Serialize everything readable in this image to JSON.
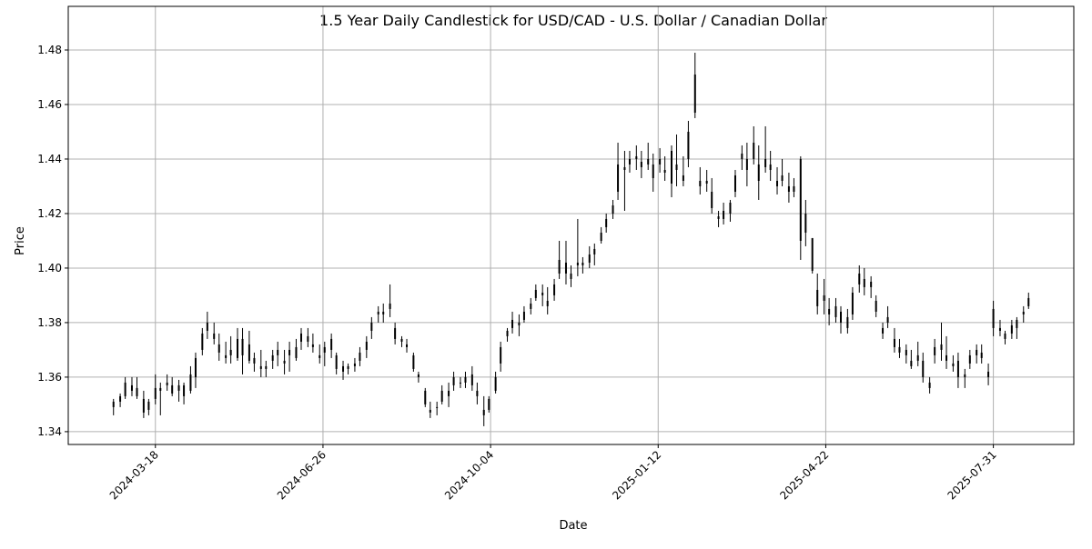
{
  "chart_data": {
    "type": "candlestick",
    "title": "1.5 Year Daily Candlestick for USD/CAD - U.S. Dollar / Canadian Dollar",
    "xlabel": "Date",
    "ylabel": "Price",
    "xlim": [
      "2024-01-26",
      "2025-09-17"
    ],
    "ylim": [
      1.3353,
      1.496
    ],
    "grid": true,
    "x_ticks": [
      "2024-03-18",
      "2024-06-26",
      "2024-10-04",
      "2025-01-12",
      "2025-04-22",
      "2025-07-31"
    ],
    "y_ticks": [
      "1.34",
      "1.36",
      "1.38",
      "1.40",
      "1.42",
      "1.44",
      "1.46",
      "1.48"
    ],
    "colors": {
      "candle": "#000000",
      "grid": "#b0b0b0"
    },
    "columns": [
      "date",
      "open",
      "high",
      "low",
      "close"
    ],
    "candles": [
      [
        "2024-02-22",
        1.349,
        1.352,
        1.346,
        1.351
      ],
      [
        "2024-02-26",
        1.351,
        1.354,
        1.349,
        1.353
      ],
      [
        "2024-02-29",
        1.353,
        1.36,
        1.352,
        1.358
      ],
      [
        "2024-03-04",
        1.357,
        1.36,
        1.353,
        1.355
      ],
      [
        "2024-03-07",
        1.356,
        1.36,
        1.352,
        1.353
      ],
      [
        "2024-03-11",
        1.352,
        1.355,
        1.345,
        1.347
      ],
      [
        "2024-03-14",
        1.348,
        1.352,
        1.346,
        1.351
      ],
      [
        "2024-03-18",
        1.352,
        1.361,
        1.35,
        1.356
      ],
      [
        "2024-03-21",
        1.355,
        1.358,
        1.346,
        1.356
      ],
      [
        "2024-03-25",
        1.357,
        1.361,
        1.355,
        1.358
      ],
      [
        "2024-03-28",
        1.357,
        1.36,
        1.353,
        1.354
      ],
      [
        "2024-04-01",
        1.355,
        1.359,
        1.351,
        1.357
      ],
      [
        "2024-04-04",
        1.357,
        1.358,
        1.35,
        1.353
      ],
      [
        "2024-04-08",
        1.355,
        1.364,
        1.354,
        1.361
      ],
      [
        "2024-04-11",
        1.36,
        1.369,
        1.356,
        1.367
      ],
      [
        "2024-04-15",
        1.37,
        1.378,
        1.368,
        1.376
      ],
      [
        "2024-04-18",
        1.377,
        1.384,
        1.374,
        1.38
      ],
      [
        "2024-04-22",
        1.376,
        1.38,
        1.372,
        1.374
      ],
      [
        "2024-04-25",
        1.372,
        1.376,
        1.366,
        1.369
      ],
      [
        "2024-04-29",
        1.368,
        1.373,
        1.365,
        1.367
      ],
      [
        "2024-05-02",
        1.37,
        1.375,
        1.365,
        1.368
      ],
      [
        "2024-05-06",
        1.367,
        1.378,
        1.366,
        1.374
      ],
      [
        "2024-05-09",
        1.374,
        1.378,
        1.361,
        1.368
      ],
      [
        "2024-05-13",
        1.366,
        1.377,
        1.365,
        1.372
      ],
      [
        "2024-05-16",
        1.367,
        1.369,
        1.362,
        1.365
      ],
      [
        "2024-05-20",
        1.364,
        1.37,
        1.36,
        1.363
      ],
      [
        "2024-05-23",
        1.363,
        1.366,
        1.36,
        1.364
      ],
      [
        "2024-05-27",
        1.366,
        1.37,
        1.363,
        1.368
      ],
      [
        "2024-05-30",
        1.368,
        1.373,
        1.364,
        1.37
      ],
      [
        "2024-06-03",
        1.366,
        1.37,
        1.361,
        1.365
      ],
      [
        "2024-06-06",
        1.368,
        1.373,
        1.362,
        1.37
      ],
      [
        "2024-06-10",
        1.367,
        1.374,
        1.366,
        1.371
      ],
      [
        "2024-06-13",
        1.373,
        1.378,
        1.37,
        1.376
      ],
      [
        "2024-06-17",
        1.375,
        1.378,
        1.371,
        1.373
      ],
      [
        "2024-06-20",
        1.371,
        1.376,
        1.369,
        1.372
      ],
      [
        "2024-06-24",
        1.368,
        1.372,
        1.365,
        1.367
      ],
      [
        "2024-06-27",
        1.369,
        1.373,
        1.364,
        1.371
      ],
      [
        "2024-07-01",
        1.37,
        1.376,
        1.367,
        1.374
      ],
      [
        "2024-07-04",
        1.368,
        1.369,
        1.361,
        1.363
      ],
      [
        "2024-07-08",
        1.364,
        1.366,
        1.359,
        1.362
      ],
      [
        "2024-07-11",
        1.363,
        1.365,
        1.361,
        1.364
      ],
      [
        "2024-07-15",
        1.364,
        1.367,
        1.362,
        1.365
      ],
      [
        "2024-07-18",
        1.366,
        1.371,
        1.364,
        1.369
      ],
      [
        "2024-07-22",
        1.37,
        1.375,
        1.367,
        1.373
      ],
      [
        "2024-07-25",
        1.377,
        1.382,
        1.374,
        1.38
      ],
      [
        "2024-07-29",
        1.383,
        1.386,
        1.38,
        1.384
      ],
      [
        "2024-08-01",
        1.384,
        1.387,
        1.38,
        1.383
      ],
      [
        "2024-08-05",
        1.385,
        1.394,
        1.382,
        1.387
      ],
      [
        "2024-08-08",
        1.378,
        1.38,
        1.372,
        1.374
      ],
      [
        "2024-08-12",
        1.374,
        1.375,
        1.371,
        1.373
      ],
      [
        "2024-08-15",
        1.372,
        1.374,
        1.369,
        1.371
      ],
      [
        "2024-08-19",
        1.368,
        1.369,
        1.362,
        1.363
      ],
      [
        "2024-08-22",
        1.361,
        1.362,
        1.358,
        1.36
      ],
      [
        "2024-08-26",
        1.355,
        1.356,
        1.349,
        1.35
      ],
      [
        "2024-08-29",
        1.348,
        1.351,
        1.345,
        1.347
      ],
      [
        "2024-09-02",
        1.349,
        1.351,
        1.346,
        1.349
      ],
      [
        "2024-09-05",
        1.351,
        1.357,
        1.35,
        1.355
      ],
      [
        "2024-09-09",
        1.355,
        1.358,
        1.349,
        1.353
      ],
      [
        "2024-09-12",
        1.357,
        1.362,
        1.355,
        1.36
      ],
      [
        "2024-09-16",
        1.358,
        1.36,
        1.356,
        1.358
      ],
      [
        "2024-09-19",
        1.36,
        1.362,
        1.356,
        1.358
      ],
      [
        "2024-09-23",
        1.357,
        1.364,
        1.355,
        1.361
      ],
      [
        "2024-09-26",
        1.355,
        1.358,
        1.35,
        1.353
      ],
      [
        "2024-09-30",
        1.348,
        1.353,
        1.342,
        1.346
      ],
      [
        "2024-10-03",
        1.348,
        1.353,
        1.347,
        1.352
      ],
      [
        "2024-10-07",
        1.355,
        1.362,
        1.354,
        1.36
      ],
      [
        "2024-10-10",
        1.365,
        1.373,
        1.362,
        1.371
      ],
      [
        "2024-10-14",
        1.375,
        1.378,
        1.373,
        1.377
      ],
      [
        "2024-10-17",
        1.378,
        1.384,
        1.376,
        1.381
      ],
      [
        "2024-10-21",
        1.38,
        1.383,
        1.375,
        1.379
      ],
      [
        "2024-10-24",
        1.381,
        1.386,
        1.38,
        1.384
      ],
      [
        "2024-10-28",
        1.385,
        1.389,
        1.383,
        1.387
      ],
      [
        "2024-10-31",
        1.389,
        1.394,
        1.388,
        1.392
      ],
      [
        "2024-11-04",
        1.39,
        1.394,
        1.386,
        1.391
      ],
      [
        "2024-11-07",
        1.388,
        1.393,
        1.383,
        1.386
      ],
      [
        "2024-11-11",
        1.39,
        1.396,
        1.388,
        1.394
      ],
      [
        "2024-11-14",
        1.398,
        1.41,
        1.396,
        1.403
      ],
      [
        "2024-11-18",
        1.402,
        1.41,
        1.394,
        1.398
      ],
      [
        "2024-11-21",
        1.396,
        1.401,
        1.393,
        1.398
      ],
      [
        "2024-11-25",
        1.402,
        1.418,
        1.397,
        1.401
      ],
      [
        "2024-11-28",
        1.401,
        1.404,
        1.398,
        1.402
      ],
      [
        "2024-12-02",
        1.402,
        1.408,
        1.4,
        1.405
      ],
      [
        "2024-12-05",
        1.405,
        1.409,
        1.401,
        1.407
      ],
      [
        "2024-12-09",
        1.41,
        1.415,
        1.409,
        1.413
      ],
      [
        "2024-12-12",
        1.415,
        1.42,
        1.413,
        1.418
      ],
      [
        "2024-12-16",
        1.42,
        1.425,
        1.418,
        1.423
      ],
      [
        "2024-12-19",
        1.428,
        1.446,
        1.425,
        1.438
      ],
      [
        "2024-12-23",
        1.437,
        1.443,
        1.421,
        1.436
      ],
      [
        "2024-12-26",
        1.438,
        1.443,
        1.435,
        1.44
      ],
      [
        "2024-12-30",
        1.44,
        1.445,
        1.436,
        1.441
      ],
      [
        "2025-01-02",
        1.437,
        1.443,
        1.433,
        1.439
      ],
      [
        "2025-01-06",
        1.44,
        1.446,
        1.436,
        1.438
      ],
      [
        "2025-01-09",
        1.438,
        1.442,
        1.428,
        1.433
      ],
      [
        "2025-01-13",
        1.438,
        1.444,
        1.435,
        1.44
      ],
      [
        "2025-01-16",
        1.436,
        1.441,
        1.432,
        1.435
      ],
      [
        "2025-01-20",
        1.443,
        1.445,
        1.426,
        1.431
      ],
      [
        "2025-01-23",
        1.436,
        1.449,
        1.43,
        1.438
      ],
      [
        "2025-01-27",
        1.432,
        1.441,
        1.43,
        1.434
      ],
      [
        "2025-01-30",
        1.44,
        1.454,
        1.437,
        1.45
      ],
      [
        "2025-02-03",
        1.471,
        1.479,
        1.455,
        1.457
      ],
      [
        "2025-02-06",
        1.432,
        1.437,
        1.427,
        1.43
      ],
      [
        "2025-02-10",
        1.431,
        1.436,
        1.428,
        1.432
      ],
      [
        "2025-02-13",
        1.428,
        1.433,
        1.42,
        1.422
      ],
      [
        "2025-02-17",
        1.418,
        1.421,
        1.415,
        1.419
      ],
      [
        "2025-02-20",
        1.418,
        1.424,
        1.416,
        1.421
      ],
      [
        "2025-02-24",
        1.42,
        1.425,
        1.417,
        1.424
      ],
      [
        "2025-02-27",
        1.428,
        1.436,
        1.426,
        1.434
      ],
      [
        "2025-03-03",
        1.44,
        1.445,
        1.436,
        1.442
      ],
      [
        "2025-03-06",
        1.436,
        1.446,
        1.43,
        1.44
      ],
      [
        "2025-03-10",
        1.44,
        1.452,
        1.438,
        1.446
      ],
      [
        "2025-03-13",
        1.438,
        1.445,
        1.425,
        1.432
      ],
      [
        "2025-03-17",
        1.437,
        1.452,
        1.435,
        1.44
      ],
      [
        "2025-03-20",
        1.438,
        1.443,
        1.432,
        1.436
      ],
      [
        "2025-03-24",
        1.432,
        1.437,
        1.427,
        1.43
      ],
      [
        "2025-03-27",
        1.432,
        1.44,
        1.43,
        1.434
      ],
      [
        "2025-03-31",
        1.43,
        1.435,
        1.424,
        1.428
      ],
      [
        "2025-04-03",
        1.428,
        1.433,
        1.426,
        1.43
      ],
      [
        "2025-04-07",
        1.44,
        1.441,
        1.403,
        1.41
      ],
      [
        "2025-04-10",
        1.42,
        1.425,
        1.408,
        1.413
      ],
      [
        "2025-04-14",
        1.411,
        1.411,
        1.398,
        1.399
      ],
      [
        "2025-04-17",
        1.392,
        1.398,
        1.383,
        1.386
      ],
      [
        "2025-04-21",
        1.39,
        1.396,
        1.383,
        1.388
      ],
      [
        "2025-04-24",
        1.385,
        1.389,
        1.379,
        1.383
      ],
      [
        "2025-04-28",
        1.386,
        1.389,
        1.38,
        1.382
      ],
      [
        "2025-05-01",
        1.384,
        1.386,
        1.376,
        1.38
      ],
      [
        "2025-05-05",
        1.382,
        1.385,
        1.376,
        1.378
      ],
      [
        "2025-05-08",
        1.383,
        1.393,
        1.381,
        1.391
      ],
      [
        "2025-05-12",
        1.394,
        1.401,
        1.391,
        1.398
      ],
      [
        "2025-05-15",
        1.396,
        1.4,
        1.39,
        1.393
      ],
      [
        "2025-05-19",
        1.393,
        1.397,
        1.389,
        1.395
      ],
      [
        "2025-05-22",
        1.388,
        1.39,
        1.382,
        1.384
      ],
      [
        "2025-05-26",
        1.378,
        1.38,
        1.374,
        1.376
      ],
      [
        "2025-05-29",
        1.38,
        1.386,
        1.378,
        1.382
      ],
      [
        "2025-06-02",
        1.374,
        1.378,
        1.369,
        1.371
      ],
      [
        "2025-06-05",
        1.371,
        1.374,
        1.367,
        1.369
      ],
      [
        "2025-06-09",
        1.368,
        1.372,
        1.365,
        1.37
      ],
      [
        "2025-06-12",
        1.366,
        1.37,
        1.363,
        1.364
      ],
      [
        "2025-06-16",
        1.366,
        1.373,
        1.364,
        1.368
      ],
      [
        "2025-06-19",
        1.366,
        1.369,
        1.358,
        1.36
      ],
      [
        "2025-06-23",
        1.358,
        1.36,
        1.354,
        1.356
      ],
      [
        "2025-06-26",
        1.368,
        1.374,
        1.365,
        1.371
      ],
      [
        "2025-06-30",
        1.372,
        1.38,
        1.366,
        1.37
      ],
      [
        "2025-07-03",
        1.368,
        1.375,
        1.363,
        1.366
      ],
      [
        "2025-07-07",
        1.365,
        1.368,
        1.362,
        1.364
      ],
      [
        "2025-07-10",
        1.366,
        1.369,
        1.356,
        1.36
      ],
      [
        "2025-07-14",
        1.36,
        1.363,
        1.356,
        1.361
      ],
      [
        "2025-07-17",
        1.365,
        1.37,
        1.363,
        1.368
      ],
      [
        "2025-07-21",
        1.368,
        1.372,
        1.365,
        1.37
      ],
      [
        "2025-07-24",
        1.367,
        1.372,
        1.365,
        1.369
      ],
      [
        "2025-07-28",
        1.362,
        1.365,
        1.357,
        1.36
      ],
      [
        "2025-07-31",
        1.378,
        1.388,
        1.375,
        1.385
      ],
      [
        "2025-08-04",
        1.378,
        1.381,
        1.375,
        1.377
      ],
      [
        "2025-08-07",
        1.374,
        1.377,
        1.372,
        1.376
      ],
      [
        "2025-08-11",
        1.376,
        1.381,
        1.374,
        1.379
      ],
      [
        "2025-08-14",
        1.378,
        1.382,
        1.374,
        1.381
      ],
      [
        "2025-08-18",
        1.383,
        1.386,
        1.38,
        1.384
      ],
      [
        "2025-08-21",
        1.386,
        1.391,
        1.385,
        1.389
      ]
    ]
  }
}
